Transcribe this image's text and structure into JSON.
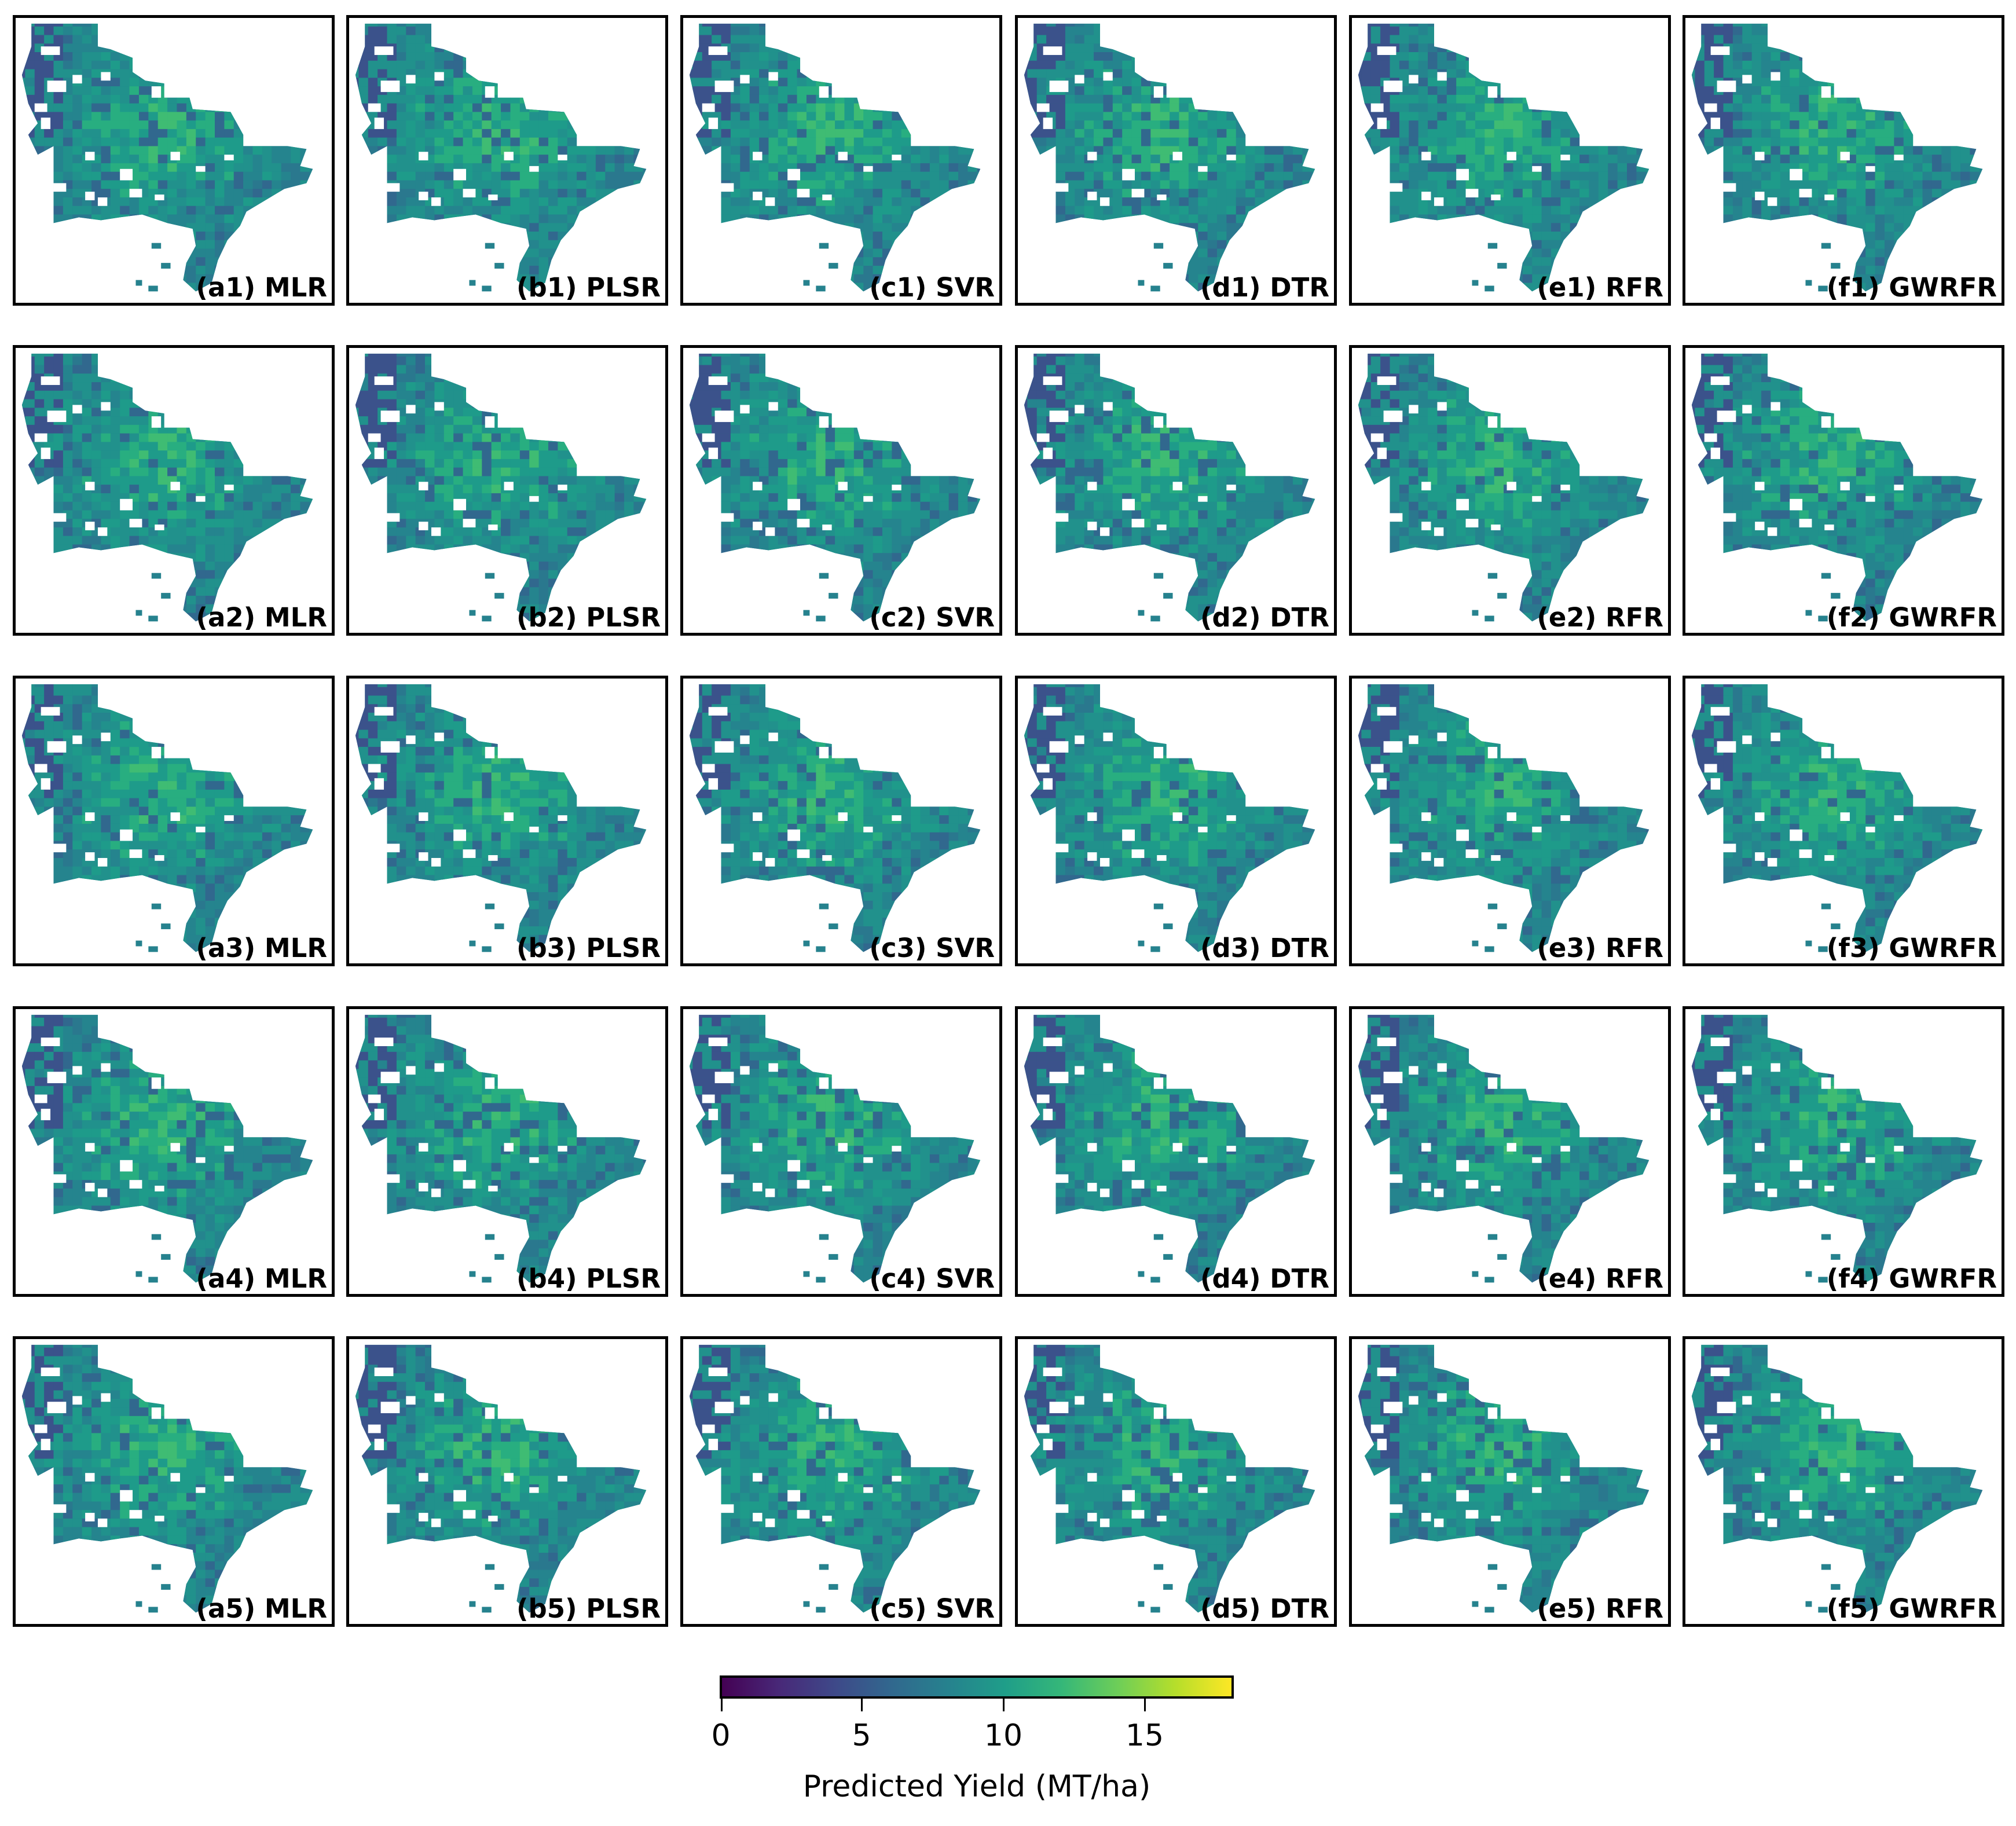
{
  "panels": [
    [
      "(a1) MLR",
      "(b1) PLSR",
      "(c1) SVR",
      "(d1) DTR",
      "(e1) RFR",
      "(f1) GWRFR"
    ],
    [
      "(a2) MLR",
      "(b2) PLSR",
      "(c2) SVR",
      "(d2) DTR",
      "(e2) RFR",
      "(f2) GWRFR"
    ],
    [
      "(a3) MLR",
      "(b3) PLSR",
      "(c3) SVR",
      "(d3) DTR",
      "(e3) RFR",
      "(f3) GWRFR"
    ],
    [
      "(a4) MLR",
      "(b4) PLSR",
      "(c4) SVR",
      "(d4) DTR",
      "(e4) RFR",
      "(f4) GWRFR"
    ],
    [
      "(a5) MLR",
      "(b5) PLSR",
      "(c5) SVR",
      "(d5) DTR",
      "(e5) RFR",
      "(f5) GWRFR"
    ]
  ],
  "colorbar": {
    "label": "Predicted Yield (MT/ha)",
    "range": [
      0,
      18
    ],
    "ticks": [
      "0",
      "5",
      "10",
      "15"
    ],
    "colormap": [
      "#440154",
      "#482878",
      "#3e4989",
      "#31688e",
      "#26828e",
      "#1f9e89",
      "#35b779",
      "#6ece58",
      "#b5de2b",
      "#fde725"
    ]
  }
}
